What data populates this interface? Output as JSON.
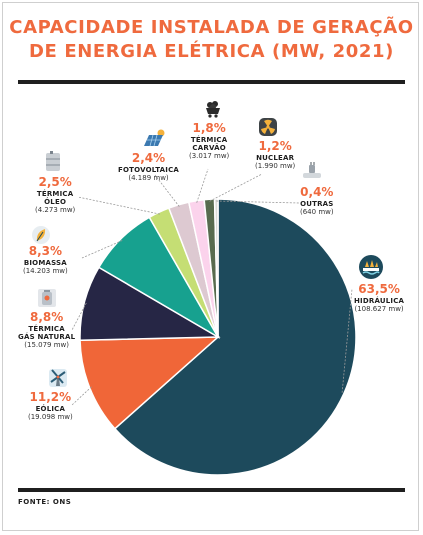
{
  "title_lines": [
    "CAPACIDADE INSTALADA DE GERAÇÃO",
    "DE ENERGIA ELÉTRICA (MW, 2021)"
  ],
  "source": "FONTE: ONS",
  "colors": {
    "accent": "#ef6a3e",
    "hidraulica": "#1d4a5c",
    "eolica": "#f06638",
    "gas": "#262645",
    "biomassa": "#17a18f",
    "oleo": "#c5de74",
    "fotovoltaica": "#ddc9d1",
    "carvao": "#fbd3ec",
    "nuclear": "#586b4f",
    "outras": "#dcdcd8"
  },
  "chart_data": {
    "type": "pie",
    "title": "CAPACIDADE INSTALADA DE GERAÇÃO DE ENERGIA ELÉTRICA (MW, 2021)",
    "slices": [
      {
        "key": "hidraulica",
        "label": "HIDRÁULICA",
        "percent": 63.5,
        "percent_text": "63,5%",
        "value_text": "(108.627 mw)",
        "icon": "hydro-dam-icon"
      },
      {
        "key": "eolica",
        "label": "EÓLICA",
        "percent": 11.2,
        "percent_text": "11,2%",
        "value_text": "(19.098 mw)",
        "icon": "windmill-icon"
      },
      {
        "key": "gas",
        "label": "TÉRMICA GÁS NATURAL",
        "percent": 8.8,
        "percent_text": "8,8%",
        "value_text": "(15.079 mw)",
        "icon": "gas-tank-icon"
      },
      {
        "key": "biomassa",
        "label": "BIOMASSA",
        "percent": 8.3,
        "percent_text": "8,3%",
        "value_text": "(14.203 mw)",
        "icon": "leaf-icon"
      },
      {
        "key": "oleo",
        "label": "TÉRMICA ÓLEO",
        "percent": 2.5,
        "percent_text": "2,5%",
        "value_text": "(4.273 mw)",
        "icon": "oil-barrel-icon"
      },
      {
        "key": "fotovoltaica",
        "label": "FOTOVOLTAICA",
        "percent": 2.4,
        "percent_text": "2,4%",
        "value_text": "(4.189 mw)",
        "icon": "solar-panel-icon"
      },
      {
        "key": "carvao",
        "label": "TÉRMICA CARVÃO",
        "percent": 1.8,
        "percent_text": "1,8%",
        "value_text": "(3.017 mw)",
        "icon": "coal-cart-icon"
      },
      {
        "key": "nuclear",
        "label": "NUCLEAR",
        "percent": 1.2,
        "percent_text": "1,2%",
        "value_text": "(1.990 mw)",
        "icon": "nuclear-icon"
      },
      {
        "key": "outras",
        "label": "OUTRAS",
        "percent": 0.4,
        "percent_text": "0,4%",
        "value_text": "(640 mw)",
        "icon": "plug-icon"
      }
    ]
  },
  "labels": {
    "hidraulica": {
      "pct": "63,5%",
      "lines": [
        "HIDRÁULICA"
      ],
      "val": "(108.627 mw)"
    },
    "eolica": {
      "pct": "11,2%",
      "lines": [
        "EÓLICA"
      ],
      "val": "(19.098 mw)"
    },
    "gas": {
      "pct": "8,8%",
      "lines": [
        "TÉRMICA",
        "GÁS NATURAL"
      ],
      "val": "(15.079 mw)"
    },
    "biomassa": {
      "pct": "8,3%",
      "lines": [
        "BIOMASSA"
      ],
      "val": "(14.203 mw)"
    },
    "oleo": {
      "pct": "2,5%",
      "lines": [
        "TÉRMICA",
        "ÓLEO"
      ],
      "val": "(4.273 mw)"
    },
    "fotovoltaica": {
      "pct": "2,4%",
      "lines": [
        "FOTOVOLTAICA"
      ],
      "val": "(4.189 mw)"
    },
    "carvao": {
      "pct": "1,8%",
      "lines": [
        "TÉRMICA",
        "CARVÃO"
      ],
      "val": "(3.017 mw)"
    },
    "nuclear": {
      "pct": "1,2%",
      "lines": [
        "NUCLEAR"
      ],
      "val": "(1.990 mw)"
    },
    "outras": {
      "pct": "0,4%",
      "lines": [
        "OUTRAS"
      ],
      "val": "(640 mw)"
    }
  }
}
